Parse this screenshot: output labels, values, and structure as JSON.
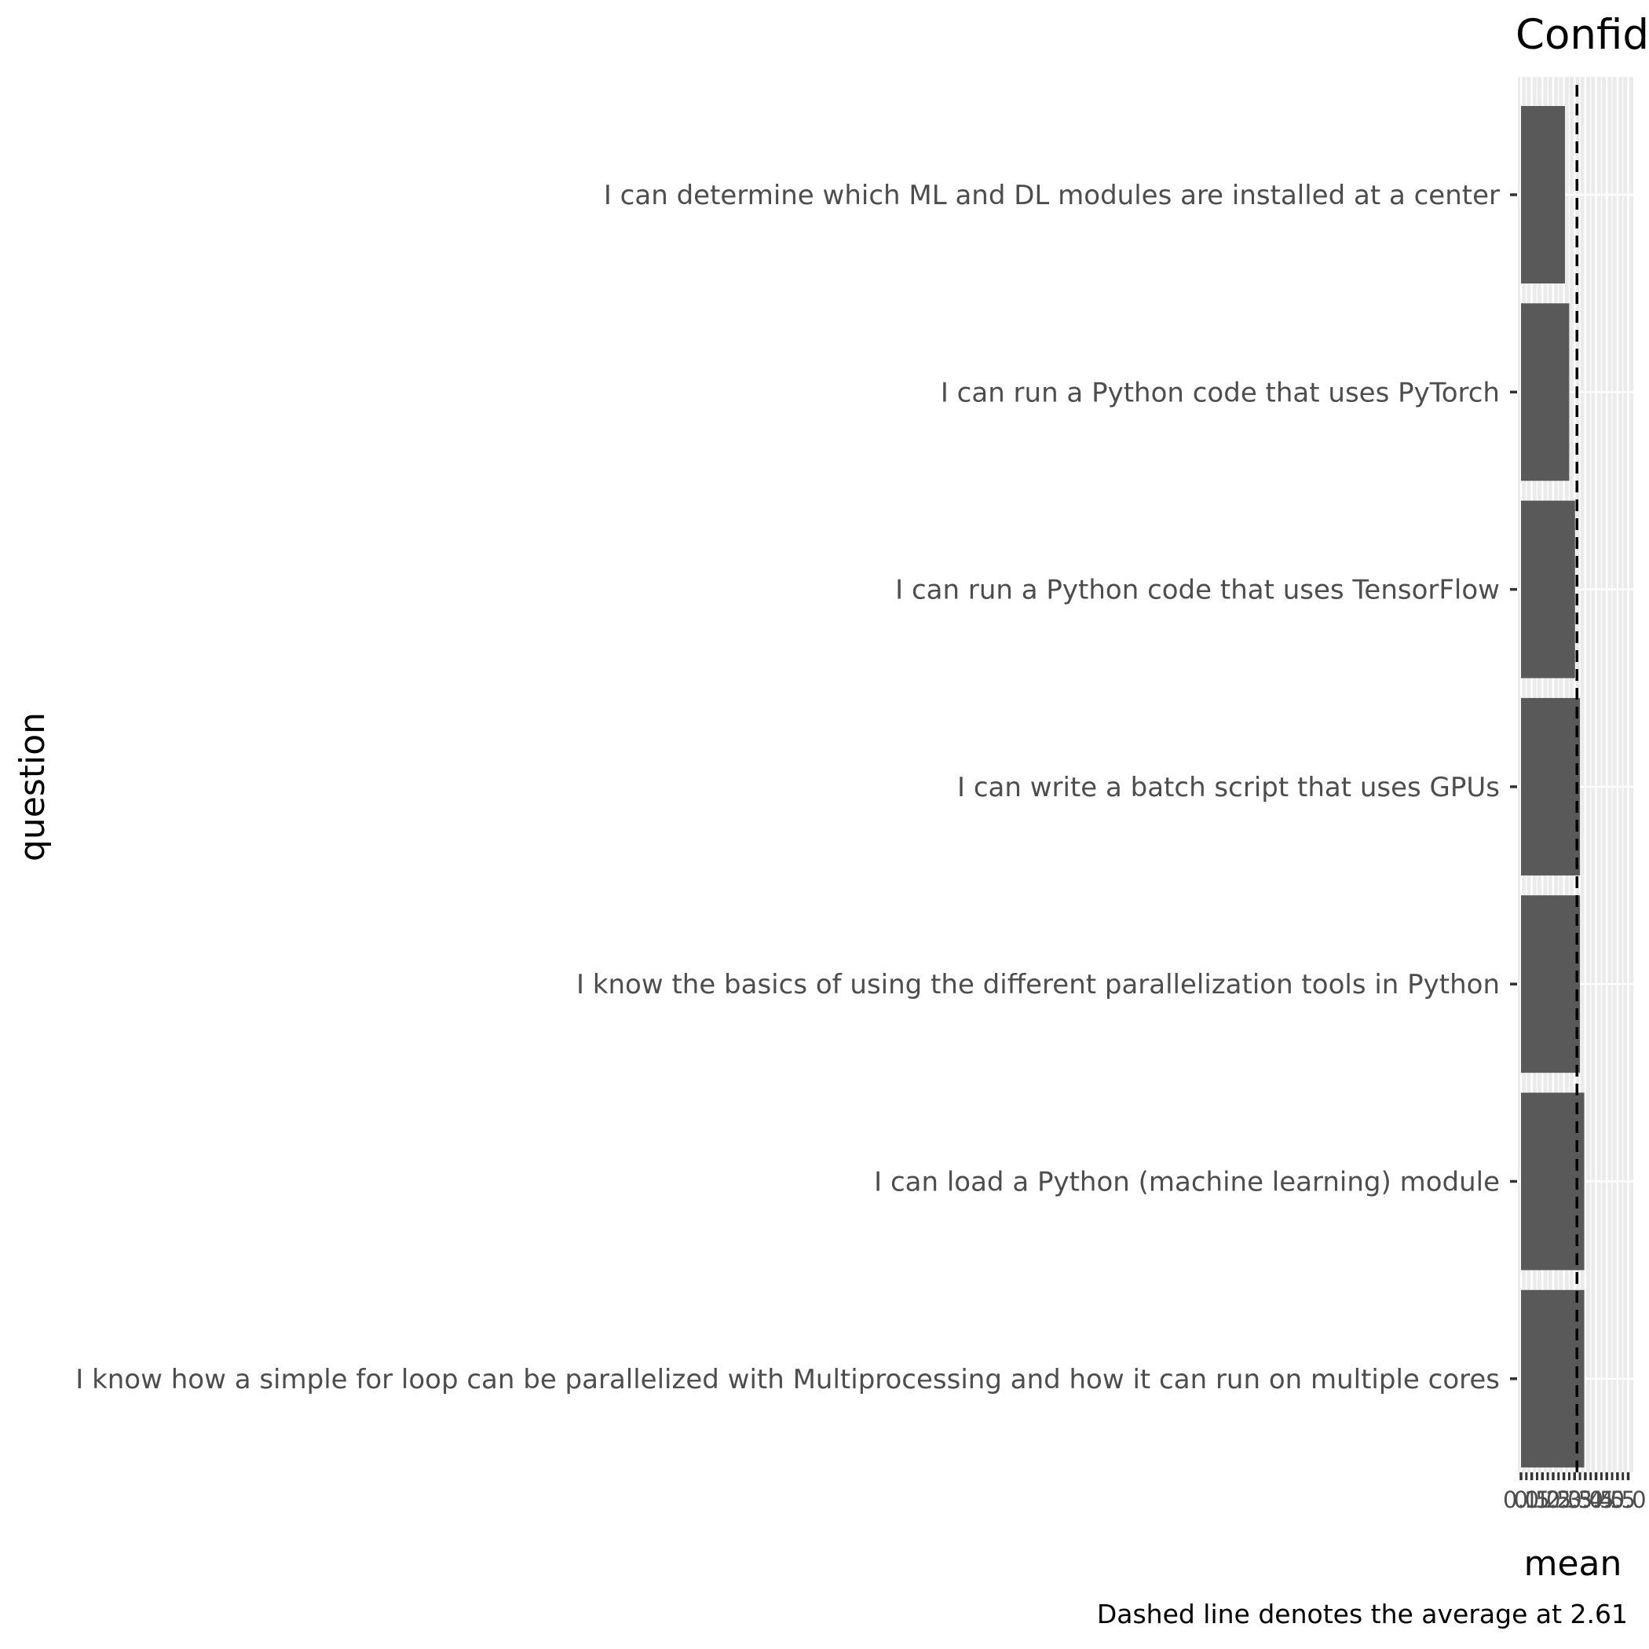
{
  "chart_data": {
    "type": "bar",
    "orientation": "horizontal",
    "title": "Confid",
    "xlabel": "mean",
    "ylabel": "question",
    "caption": "Dashed line denotes the average at 2.61",
    "categories": [
      "I can determine which ML and DL modules are installed at a center",
      "I can run a Python code that uses PyTorch",
      "I can run a Python code that uses TensorFlow",
      "I can write a batch script that uses GPUs",
      "I know the basics of using the different parallelization tools in Python",
      "I can load a Python (machine learning) module",
      "I know how a simple for loop can be parallelized with Multiprocessing and how it can run on multiple cores"
    ],
    "values": [
      2.05,
      2.25,
      2.52,
      2.75,
      2.75,
      2.95,
      2.95
    ],
    "average": 2.61,
    "xlim": [
      0,
      5
    ],
    "xticks": [
      "0.0",
      "0.5",
      "1.0",
      "1.5",
      "2.0",
      "2.5",
      "3.0",
      "3.5",
      "4.0",
      "4.5",
      "5.0"
    ],
    "bar_color": "#595959",
    "panel_color": "#ebebeb",
    "grid": true
  }
}
